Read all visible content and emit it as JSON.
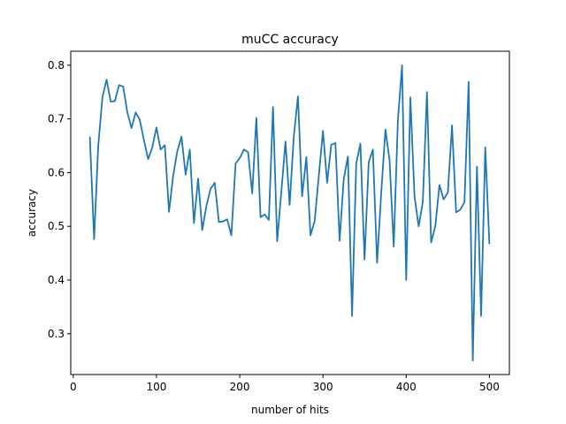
{
  "chart_data": {
    "type": "line",
    "title": "muCC accuracy",
    "xlabel": "number of hits",
    "ylabel": "accuracy",
    "xlim": [
      -3,
      524
    ],
    "ylim": [
      0.224,
      0.826
    ],
    "xticks": [
      0,
      100,
      200,
      300,
      400,
      500
    ],
    "yticks": [
      0.3,
      0.4,
      0.5,
      0.6,
      0.7,
      0.8
    ],
    "grid": false,
    "series": [
      {
        "color": "#1f77b4",
        "x": [
          20,
          25,
          30,
          35,
          40,
          45,
          50,
          55,
          60,
          65,
          70,
          75,
          80,
          85,
          90,
          95,
          100,
          105,
          110,
          115,
          120,
          125,
          130,
          135,
          140,
          145,
          150,
          155,
          160,
          165,
          170,
          175,
          180,
          185,
          190,
          195,
          200,
          205,
          210,
          215,
          220,
          225,
          230,
          235,
          240,
          245,
          250,
          255,
          260,
          265,
          270,
          275,
          280,
          285,
          290,
          295,
          300,
          305,
          310,
          315,
          320,
          325,
          330,
          335,
          340,
          345,
          350,
          355,
          360,
          365,
          370,
          375,
          380,
          385,
          390,
          395,
          400,
          405,
          410,
          415,
          420,
          425,
          430,
          435,
          440,
          445,
          450,
          455,
          460,
          465,
          470,
          475,
          480,
          485,
          490,
          495,
          500
        ],
        "y": [
          0.667,
          0.476,
          0.65,
          0.74,
          0.773,
          0.732,
          0.733,
          0.763,
          0.76,
          0.712,
          0.683,
          0.712,
          0.698,
          0.66,
          0.625,
          0.647,
          0.684,
          0.643,
          0.651,
          0.527,
          0.594,
          0.64,
          0.667,
          0.596,
          0.643,
          0.506,
          0.589,
          0.493,
          0.538,
          0.57,
          0.581,
          0.508,
          0.509,
          0.513,
          0.483,
          0.617,
          0.627,
          0.643,
          0.638,
          0.561,
          0.702,
          0.517,
          0.522,
          0.512,
          0.722,
          0.472,
          0.564,
          0.658,
          0.54,
          0.667,
          0.742,
          0.556,
          0.629,
          0.483,
          0.51,
          0.594,
          0.678,
          0.581,
          0.652,
          0.655,
          0.473,
          0.588,
          0.63,
          0.333,
          0.617,
          0.654,
          0.438,
          0.619,
          0.643,
          0.432,
          0.563,
          0.68,
          0.623,
          0.462,
          0.697,
          0.8,
          0.4,
          0.74,
          0.556,
          0.5,
          0.545,
          0.75,
          0.47,
          0.5,
          0.577,
          0.55,
          0.563,
          0.688,
          0.526,
          0.531,
          0.545,
          0.769,
          0.25,
          0.611,
          0.333,
          0.647,
          0.467
        ]
      }
    ]
  }
}
